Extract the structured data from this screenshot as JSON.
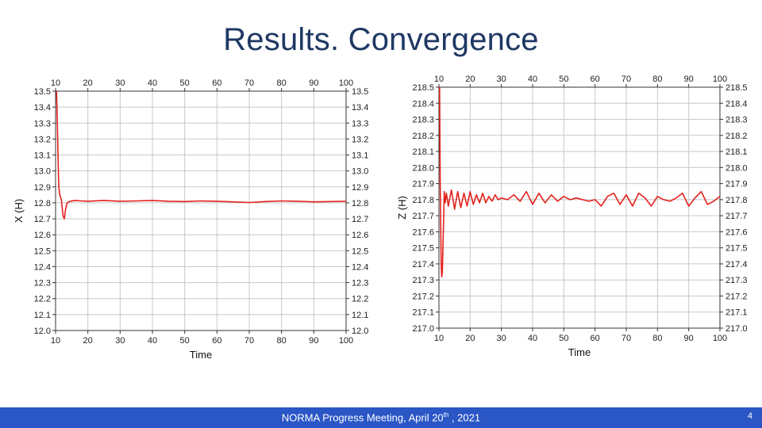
{
  "slide": {
    "title": "Results. Convergence",
    "footer_main": "NORMA Progress Meeting, April 20",
    "footer_sup": "th",
    "footer_tail": " , 2021",
    "page_number": "4"
  },
  "colors": {
    "title": "#1f3864",
    "series": "#e3211c",
    "grid": "#c8c8c8",
    "footer_bg": "#2a56c6"
  },
  "chart_data": [
    {
      "type": "line",
      "title": "",
      "xlabel": "Time",
      "ylabel": "X (H)",
      "xlim": [
        10,
        100
      ],
      "ylim": [
        12.0,
        13.5
      ],
      "x_ticks": [
        10,
        20,
        30,
        40,
        50,
        60,
        70,
        80,
        90,
        100
      ],
      "y_ticks": [
        "13.5",
        "13.4",
        "13.3",
        "13.2",
        "13.1",
        "13.0",
        "12.9",
        "12.8",
        "12.7",
        "12.6",
        "12.5",
        "12.4",
        "12.3",
        "12.2",
        "12.1",
        "12.0"
      ],
      "mirror_axes": true,
      "grid": true,
      "series": [
        {
          "x": [
            10.3,
            10.5,
            10.8,
            11.0,
            11.3,
            11.8,
            12.3,
            12.7,
            13.1,
            13.6,
            14.5,
            16,
            18,
            20,
            25,
            30,
            35,
            40,
            45,
            50,
            55,
            60,
            65,
            70,
            75,
            80,
            85,
            90,
            95,
            100
          ],
          "y": [
            13.5,
            13.35,
            13.05,
            12.9,
            12.85,
            12.82,
            12.72,
            12.7,
            12.76,
            12.8,
            12.81,
            12.815,
            12.812,
            12.81,
            12.815,
            12.81,
            12.812,
            12.815,
            12.81,
            12.808,
            12.812,
            12.81,
            12.806,
            12.802,
            12.808,
            12.812,
            12.81,
            12.806,
            12.808,
            12.81
          ]
        }
      ]
    },
    {
      "type": "line",
      "title": "",
      "xlabel": "Time",
      "ylabel": "Z (H)",
      "xlim": [
        10,
        100
      ],
      "ylim": [
        217.0,
        218.5
      ],
      "x_ticks": [
        10,
        20,
        30,
        40,
        50,
        60,
        70,
        80,
        90,
        100
      ],
      "y_ticks": [
        "218.5",
        "218.4",
        "218.3",
        "218.2",
        "218.1",
        "218.0",
        "217.9",
        "217.8",
        "217.7",
        "217.6",
        "217.5",
        "217.4",
        "217.3",
        "217.2",
        "217.1",
        "217.0"
      ],
      "mirror_axes": true,
      "grid": true,
      "series": [
        {
          "x": [
            10.2,
            10.4,
            10.7,
            10.9,
            11.1,
            11.4,
            11.7,
            12.0,
            12.4,
            13,
            14,
            15,
            16,
            17,
            18,
            19,
            20,
            21,
            22,
            23,
            24,
            25,
            26,
            27,
            28,
            29,
            30,
            32,
            34,
            36,
            38,
            40,
            42,
            44,
            46,
            48,
            50,
            52,
            54,
            56,
            58,
            60,
            62,
            64,
            66,
            68,
            70,
            72,
            74,
            76,
            78,
            80,
            82,
            84,
            86,
            88,
            90,
            92,
            94,
            96,
            98,
            100
          ],
          "y": [
            218.5,
            217.9,
            217.4,
            217.32,
            217.35,
            217.6,
            217.85,
            217.78,
            217.84,
            217.76,
            217.86,
            217.74,
            217.85,
            217.75,
            217.84,
            217.76,
            217.85,
            217.77,
            217.83,
            217.78,
            217.84,
            217.78,
            217.82,
            217.79,
            217.83,
            217.8,
            217.81,
            217.8,
            217.83,
            217.79,
            217.85,
            217.77,
            217.84,
            217.78,
            217.83,
            217.79,
            217.82,
            217.8,
            217.81,
            217.8,
            217.79,
            217.8,
            217.76,
            217.82,
            217.84,
            217.77,
            217.83,
            217.76,
            217.84,
            217.81,
            217.76,
            217.82,
            217.8,
            217.79,
            217.81,
            217.84,
            217.76,
            217.81,
            217.85,
            217.77,
            217.79,
            217.82
          ]
        }
      ]
    }
  ]
}
